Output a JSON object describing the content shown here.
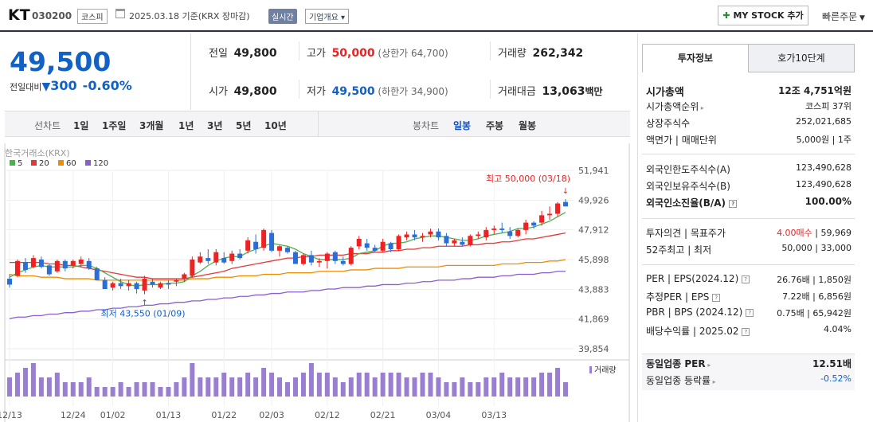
{
  "header": {
    "stock_name": "KT",
    "stock_code": "030200",
    "market": "코스피",
    "date_text": "2025.03.18  기준(KRX 장마감)",
    "realtime": "실시간",
    "corp_info": "기업개요",
    "mystock": "MY STOCK 추가",
    "quick_order": "빠른주문"
  },
  "price": {
    "current": "49,500",
    "change_label": "전일대비",
    "change": "300",
    "change_pct": "-0.60%",
    "prev_label": "전일",
    "prev": "49,800",
    "open_label": "시가",
    "open": "49,800",
    "high_label": "고가",
    "high": "50,000",
    "upper_limit": "(상한가 64,700)",
    "low_label": "저가",
    "low": "49,500",
    "lower_limit": "(하한가 34,900)",
    "volume_label": "거래량",
    "volume": "262,342",
    "amount_label": "거래대금",
    "amount": "13,063",
    "amount_unit": "백만"
  },
  "periods": {
    "line_label": "선차트",
    "line_items": [
      "1일",
      "1주일",
      "3개월",
      "1년",
      "3년",
      "5년",
      "10년"
    ],
    "candle_label": "봉차트",
    "candle_items": [
      "일봉",
      "주봉",
      "월봉"
    ],
    "candle_selected": "일봉"
  },
  "chart_data": {
    "type": "candlestick",
    "source_label": "한국거래소(KRX)",
    "legend": [
      {
        "name": "5",
        "color": "#4caf50"
      },
      {
        "name": "20",
        "color": "#e53935"
      },
      {
        "name": "60",
        "color": "#f08c00"
      },
      {
        "name": "120",
        "color": "#8a5ecf"
      }
    ],
    "y_ticks": [
      "51,941",
      "49,926",
      "47,912",
      "45,898",
      "43,883",
      "41,869",
      "39,854"
    ],
    "y_min": 39854,
    "y_max": 51941,
    "x_ticks": [
      "12/13",
      "12/24",
      "01/02",
      "01/13",
      "01/22",
      "02/03",
      "02/12",
      "02/21",
      "03/04",
      "03/13"
    ],
    "high_annotation": "최고 50,000 (03/18)",
    "low_annotation": "최저 43,550 (01/09)",
    "volume_label": "거래량",
    "ohlc": [
      [
        44.6,
        44.9,
        44.0,
        44.2
      ],
      [
        44.8,
        45.9,
        44.7,
        45.8
      ],
      [
        45.7,
        46.0,
        45.0,
        45.2
      ],
      [
        45.4,
        46.2,
        45.3,
        46.0
      ],
      [
        45.9,
        46.1,
        45.3,
        45.4
      ],
      [
        45.5,
        45.6,
        44.8,
        44.9
      ],
      [
        45.1,
        45.9,
        45.0,
        45.8
      ],
      [
        45.8,
        45.9,
        45.1,
        45.3
      ],
      [
        45.5,
        45.9,
        45.3,
        45.8
      ],
      [
        45.6,
        46.1,
        45.4,
        45.9
      ],
      [
        45.8,
        46.0,
        45.2,
        45.3
      ],
      [
        45.3,
        45.4,
        44.5,
        44.5
      ],
      [
        44.5,
        44.7,
        43.9,
        43.9
      ],
      [
        44.0,
        44.4,
        43.8,
        44.3
      ],
      [
        44.3,
        44.6,
        43.9,
        44.1
      ],
      [
        44.1,
        44.5,
        43.8,
        44.3
      ],
      [
        44.3,
        44.4,
        43.6,
        43.9
      ],
      [
        43.8,
        44.8,
        43.55,
        44.6
      ],
      [
        44.4,
        44.6,
        44.0,
        44.2
      ],
      [
        44.0,
        44.4,
        43.9,
        44.3
      ],
      [
        44.3,
        44.5,
        43.9,
        44.2
      ],
      [
        44.4,
        44.6,
        44.1,
        44.5
      ],
      [
        44.6,
        45.0,
        44.4,
        44.9
      ],
      [
        44.8,
        46.1,
        44.7,
        45.9
      ],
      [
        45.7,
        46.4,
        45.6,
        46.1
      ],
      [
        46.0,
        46.6,
        45.6,
        45.8
      ],
      [
        45.7,
        46.6,
        45.5,
        46.4
      ],
      [
        46.0,
        46.4,
        45.6,
        45.7
      ],
      [
        45.8,
        46.5,
        45.6,
        46.3
      ],
      [
        46.3,
        46.6,
        45.9,
        46.0
      ],
      [
        46.5,
        47.4,
        46.3,
        47.2
      ],
      [
        47.1,
        47.6,
        46.3,
        46.6
      ],
      [
        46.7,
        48.0,
        46.5,
        47.9
      ],
      [
        47.7,
        47.9,
        46.4,
        46.5
      ],
      [
        46.5,
        46.9,
        46.1,
        46.8
      ],
      [
        46.7,
        46.8,
        46.3,
        46.4
      ],
      [
        46.4,
        46.5,
        45.6,
        45.6
      ],
      [
        45.6,
        46.3,
        45.5,
        46.2
      ],
      [
        46.2,
        46.5,
        45.5,
        45.7
      ],
      [
        45.7,
        46.0,
        45.4,
        45.8
      ],
      [
        45.8,
        46.4,
        45.3,
        46.3
      ],
      [
        46.4,
        46.5,
        45.6,
        45.8
      ],
      [
        45.8,
        46.1,
        45.5,
        45.6
      ],
      [
        45.6,
        46.8,
        45.5,
        46.7
      ],
      [
        46.8,
        47.5,
        46.6,
        47.3
      ],
      [
        47.0,
        47.3,
        46.5,
        46.7
      ],
      [
        46.7,
        46.9,
        46.4,
        46.5
      ],
      [
        46.5,
        47.3,
        46.4,
        47.1
      ],
      [
        47.0,
        47.1,
        46.4,
        46.6
      ],
      [
        46.6,
        47.6,
        46.5,
        47.5
      ],
      [
        47.4,
        47.8,
        47.2,
        47.6
      ],
      [
        47.6,
        47.9,
        47.2,
        47.4
      ],
      [
        47.4,
        47.7,
        47.1,
        47.5
      ],
      [
        47.6,
        48.0,
        47.4,
        47.8
      ],
      [
        47.8,
        48.0,
        47.2,
        47.4
      ],
      [
        47.5,
        47.7,
        46.8,
        47.0
      ],
      [
        47.0,
        47.3,
        46.8,
        47.2
      ],
      [
        47.1,
        47.4,
        46.8,
        46.9
      ],
      [
        46.9,
        47.6,
        46.8,
        47.5
      ],
      [
        47.5,
        47.8,
        47.3,
        47.6
      ],
      [
        47.4,
        48.1,
        47.2,
        47.9
      ],
      [
        47.9,
        48.2,
        47.6,
        48.0
      ],
      [
        48.0,
        48.4,
        47.7,
        47.9
      ],
      [
        47.8,
        48.1,
        47.3,
        47.5
      ],
      [
        47.5,
        48.0,
        47.4,
        47.9
      ],
      [
        47.9,
        48.6,
        47.6,
        48.4
      ],
      [
        48.4,
        48.5,
        48.0,
        48.2
      ],
      [
        48.4,
        49.2,
        48.2,
        48.9
      ],
      [
        48.9,
        49.5,
        48.6,
        49.0
      ],
      [
        49.0,
        49.8,
        48.8,
        49.7
      ],
      [
        49.8,
        50.0,
        49.5,
        49.5
      ]
    ],
    "volume": [
      4,
      5,
      6,
      7,
      4,
      4,
      5,
      3,
      3,
      3,
      4,
      2,
      2,
      2,
      3,
      2,
      3,
      3,
      3,
      2,
      2,
      3,
      4,
      7,
      4,
      4,
      4,
      5,
      4,
      4,
      5,
      4,
      6,
      5,
      4,
      3,
      4,
      5,
      7,
      5,
      5,
      4,
      3,
      4,
      5,
      5,
      4,
      5,
      5,
      5,
      4,
      4,
      5,
      5,
      4,
      3,
      3,
      4,
      3,
      3,
      4,
      4,
      5,
      4,
      4,
      4,
      4,
      5,
      5,
      6,
      3
    ],
    "ma5": [
      44.7,
      45.0,
      45.2,
      45.4,
      45.5,
      45.4,
      45.4,
      45.4,
      45.4,
      45.5,
      45.5,
      45.3,
      45.0,
      44.7,
      44.4,
      44.2,
      44.1,
      44.2,
      44.2,
      44.2,
      44.3,
      44.3,
      44.4,
      44.8,
      45.1,
      45.5,
      45.8,
      46.0,
      46.1,
      46.1,
      46.4,
      46.6,
      46.8,
      47.0,
      46.9,
      46.8,
      46.6,
      46.3,
      46.1,
      45.9,
      45.9,
      45.9,
      45.9,
      46.0,
      46.3,
      46.4,
      46.5,
      46.8,
      47.0,
      47.0,
      47.1,
      47.3,
      47.4,
      47.5,
      47.5,
      47.4,
      47.3,
      47.2,
      47.2,
      47.3,
      47.5,
      47.6,
      47.7,
      47.8,
      48.0,
      48.0,
      48.1,
      48.3,
      48.5,
      48.8,
      49.1
    ],
    "ma20": [
      45.7,
      45.7,
      45.7,
      45.7,
      45.7,
      45.6,
      45.6,
      45.5,
      45.5,
      45.4,
      45.3,
      45.2,
      45.1,
      45.0,
      44.9,
      44.8,
      44.7,
      44.7,
      44.6,
      44.6,
      44.6,
      44.6,
      44.6,
      44.7,
      44.8,
      44.9,
      45.0,
      45.1,
      45.3,
      45.4,
      45.5,
      45.6,
      45.7,
      45.8,
      45.9,
      46.0,
      46.0,
      46.1,
      46.1,
      46.2,
      46.2,
      46.2,
      46.2,
      46.3,
      46.3,
      46.3,
      46.4,
      46.4,
      46.5,
      46.5,
      46.6,
      46.6,
      46.7,
      46.7,
      46.8,
      46.8,
      46.8,
      46.8,
      46.9,
      46.9,
      47.0,
      47.0,
      47.1,
      47.1,
      47.2,
      47.3,
      47.3,
      47.4,
      47.5,
      47.6,
      47.7
    ],
    "ma60": [
      44.9,
      44.8,
      44.8,
      44.8,
      44.7,
      44.7,
      44.7,
      44.6,
      44.6,
      44.6,
      44.6,
      44.5,
      44.5,
      44.5,
      44.5,
      44.5,
      44.5,
      44.5,
      44.5,
      44.5,
      44.5,
      44.5,
      44.5,
      44.6,
      44.6,
      44.6,
      44.7,
      44.7,
      44.7,
      44.8,
      44.8,
      44.8,
      44.9,
      44.9,
      44.9,
      45.0,
      45.0,
      45.0,
      45.0,
      45.1,
      45.1,
      45.1,
      45.1,
      45.2,
      45.2,
      45.2,
      45.3,
      45.3,
      45.3,
      45.3,
      45.4,
      45.4,
      45.4,
      45.4,
      45.4,
      45.5,
      45.5,
      45.5,
      45.5,
      45.5,
      45.5,
      45.5,
      45.6,
      45.6,
      45.6,
      45.7,
      45.7,
      45.7,
      45.8,
      45.8,
      45.9
    ],
    "ma120": [
      41.9,
      42.0,
      42.0,
      42.1,
      42.1,
      42.2,
      42.2,
      42.3,
      42.3,
      42.4,
      42.4,
      42.5,
      42.5,
      42.6,
      42.6,
      42.7,
      42.7,
      42.8,
      42.8,
      42.9,
      42.9,
      43.0,
      43.0,
      43.1,
      43.1,
      43.2,
      43.2,
      43.3,
      43.3,
      43.4,
      43.4,
      43.5,
      43.5,
      43.6,
      43.6,
      43.7,
      43.7,
      43.7,
      43.8,
      43.8,
      43.9,
      43.9,
      44.0,
      44.0,
      44.0,
      44.1,
      44.1,
      44.2,
      44.2,
      44.2,
      44.3,
      44.3,
      44.4,
      44.4,
      44.5,
      44.5,
      44.5,
      44.6,
      44.6,
      44.7,
      44.7,
      44.7,
      44.8,
      44.8,
      44.9,
      44.9,
      44.9,
      45.0,
      45.0,
      45.1,
      45.1
    ]
  },
  "panel": {
    "tab_invest": "투자정보",
    "tab_hoga": "호가10단계",
    "rows1": [
      {
        "label": "시가총액",
        "value": "12조 4,751억원"
      },
      {
        "label": "시가총액순위",
        "value": "코스피 37위"
      },
      {
        "label": "상장주식수",
        "value": "252,021,685"
      },
      {
        "label": "액면가 | 매매단위",
        "value": "5,000원 | 1주"
      }
    ],
    "rows2": [
      {
        "label": "외국인한도주식수(A)",
        "value": "123,490,628"
      },
      {
        "label": "외국인보유주식수(B)",
        "value": "123,490,628"
      },
      {
        "label": "외국인소진율(B/A)",
        "value": "100.00%"
      }
    ],
    "rows3": [
      {
        "label": "투자의견 | 목표주가",
        "value_red": "4.00매수",
        "value": " | 59,969"
      },
      {
        "label": "52주최고 | 최저",
        "value": "50,000 | 33,000"
      }
    ],
    "rows4": [
      {
        "label": "PER | EPS(2024.12)",
        "value": "26.76배 | 1,850원"
      },
      {
        "label": "추정PER | EPS",
        "value": "7.22배 | 6,856원"
      },
      {
        "label": "PBR | BPS (2024.12)",
        "value": "0.75배 | 65,942원"
      },
      {
        "label": "배당수익률 | 2025.02",
        "value": "4.04%"
      }
    ],
    "foot": [
      {
        "label": "동일업종 PER",
        "value": "12.51배"
      },
      {
        "label": "동일업종 등락률",
        "value": "-0.52%"
      }
    ]
  }
}
